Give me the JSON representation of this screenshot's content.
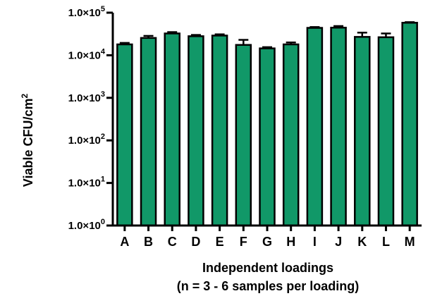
{
  "chart_data": {
    "type": "bar",
    "y_scale": "log",
    "bar_color": "#119868",
    "categories": [
      "A",
      "B",
      "C",
      "D",
      "E",
      "F",
      "G",
      "H",
      "I",
      "J",
      "K",
      "L",
      "M"
    ],
    "values": [
      18000,
      25500,
      32500,
      28000,
      29000,
      17500,
      14500,
      18000,
      44000,
      44500,
      27000,
      26500,
      58000
    ],
    "error_upper": [
      19500,
      28500,
      35000,
      30000,
      31000,
      23000,
      15500,
      20000,
      46000,
      48500,
      34000,
      32500,
      60000
    ],
    "ylim": [
      1,
      100000
    ],
    "yticks": [
      {
        "value": 100000,
        "base": "1.0×10",
        "exp": "5"
      },
      {
        "value": 10000,
        "base": "1.0×10",
        "exp": "4"
      },
      {
        "value": 1000,
        "base": "1.0×10",
        "exp": "3"
      },
      {
        "value": 100,
        "base": "1.0×10",
        "exp": "2"
      },
      {
        "value": 10,
        "base": "1.0×10",
        "exp": "1"
      },
      {
        "value": 1,
        "base": "1.0×10",
        "exp": "0"
      }
    ],
    "ylabel": {
      "text": "Viable CFU/cm",
      "sup": "2"
    },
    "xlabel": [
      "Independent loadings",
      "(n = 3 - 6 samples per loading)"
    ],
    "grid": false,
    "legend": "none"
  }
}
